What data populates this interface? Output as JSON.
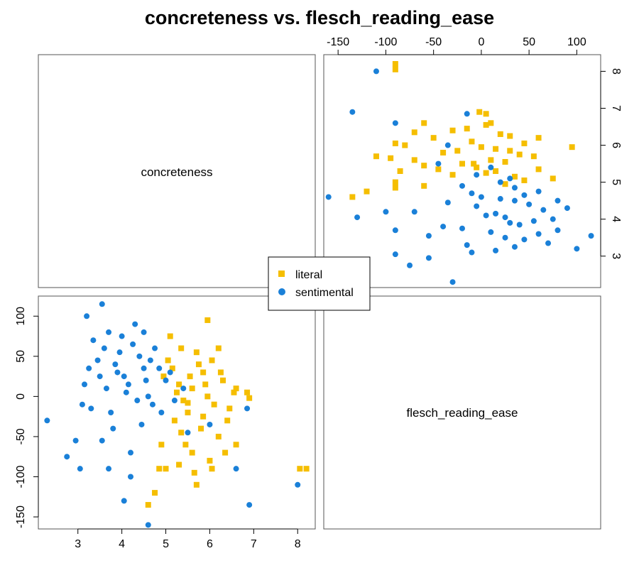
{
  "chart_data": {
    "type": "scatter",
    "layout": "scatterplot-matrix",
    "title": "concreteness vs. flesch_reading_ease",
    "variables": [
      "concreteness",
      "flesch_reading_ease"
    ],
    "axes": {
      "concreteness": {
        "ticks": [
          3,
          4,
          5,
          6,
          7,
          8
        ],
        "range": [
          2.1,
          8.4
        ]
      },
      "flesch_reading_ease": {
        "ticks": [
          -150,
          -100,
          -50,
          0,
          50,
          100
        ],
        "range": [
          -165,
          125
        ]
      }
    },
    "legend": {
      "position": "center",
      "entries": [
        "literal",
        "sentimental"
      ]
    },
    "series": [
      {
        "name": "literal",
        "color": "#F5BE00",
        "marker": "square",
        "points": [
          [
            8.2,
            -90
          ],
          [
            8.05,
            -90
          ],
          [
            6.6,
            -60
          ],
          [
            6.85,
            5
          ],
          [
            6.2,
            -50
          ],
          [
            6.05,
            -90
          ],
          [
            5.7,
            -110
          ],
          [
            5.3,
            -85
          ],
          [
            4.6,
            -135
          ],
          [
            4.85,
            -90
          ],
          [
            5.95,
            95
          ],
          [
            5.1,
            75
          ],
          [
            5.35,
            60
          ],
          [
            5.85,
            30
          ],
          [
            5.6,
            10
          ],
          [
            5.4,
            -5
          ],
          [
            5.2,
            -30
          ],
          [
            4.9,
            -60
          ],
          [
            5.5,
            -20
          ],
          [
            6.3,
            20
          ],
          [
            6.45,
            -15
          ],
          [
            5.75,
            40
          ],
          [
            5.55,
            25
          ],
          [
            5.8,
            -40
          ],
          [
            5.05,
            45
          ],
          [
            6.1,
            -10
          ],
          [
            5.9,
            15
          ],
          [
            5.25,
            5
          ],
          [
            4.95,
            25
          ],
          [
            6.6,
            10
          ],
          [
            6.55,
            5
          ],
          [
            6.9,
            -2
          ],
          [
            6.2,
            60
          ],
          [
            5.45,
            -60
          ],
          [
            5.0,
            -90
          ],
          [
            4.75,
            -120
          ],
          [
            6.0,
            -80
          ],
          [
            5.65,
            -95
          ],
          [
            6.35,
            -70
          ],
          [
            5.6,
            -70
          ],
          [
            5.15,
            35
          ],
          [
            5.7,
            55
          ],
          [
            6.05,
            45
          ],
          [
            5.3,
            15
          ],
          [
            5.5,
            -8
          ],
          [
            5.85,
            -25
          ],
          [
            6.25,
            30
          ],
          [
            6.4,
            -30
          ],
          [
            5.95,
            0
          ],
          [
            5.35,
            -45
          ]
        ]
      },
      {
        "name": "sentimental",
        "color": "#1A80D8",
        "marker": "circle",
        "points": [
          [
            8.0,
            -110
          ],
          [
            6.9,
            -135
          ],
          [
            2.3,
            -30
          ],
          [
            2.75,
            -75
          ],
          [
            2.95,
            -55
          ],
          [
            3.05,
            -90
          ],
          [
            4.05,
            -130
          ],
          [
            4.6,
            -160
          ],
          [
            3.55,
            115
          ],
          [
            3.2,
            100
          ],
          [
            6.85,
            -15
          ],
          [
            3.7,
            -90
          ],
          [
            4.2,
            -100
          ],
          [
            6.6,
            -90
          ],
          [
            5.5,
            -45
          ],
          [
            6.0,
            -35
          ],
          [
            4.3,
            90
          ],
          [
            4.5,
            80
          ],
          [
            3.85,
            40
          ],
          [
            4.15,
            15
          ],
          [
            3.6,
            60
          ],
          [
            4.4,
            50
          ],
          [
            3.9,
            30
          ],
          [
            4.1,
            5
          ],
          [
            3.5,
            25
          ],
          [
            4.7,
            -10
          ],
          [
            4.25,
            65
          ],
          [
            3.75,
            -20
          ],
          [
            4.55,
            20
          ],
          [
            3.95,
            55
          ],
          [
            3.3,
            -15
          ],
          [
            4.85,
            35
          ],
          [
            3.65,
            10
          ],
          [
            4.45,
            -35
          ],
          [
            4.0,
            75
          ],
          [
            3.45,
            45
          ],
          [
            4.35,
            -5
          ],
          [
            3.8,
            -40
          ],
          [
            4.6,
            0
          ],
          [
            3.25,
            35
          ],
          [
            5.1,
            30
          ],
          [
            4.9,
            -20
          ],
          [
            3.1,
            -10
          ],
          [
            5.2,
            -5
          ],
          [
            3.35,
            70
          ],
          [
            4.75,
            60
          ],
          [
            4.05,
            25
          ],
          [
            3.55,
            -55
          ],
          [
            4.65,
            45
          ],
          [
            3.15,
            15
          ],
          [
            5.4,
            10
          ],
          [
            4.2,
            -70
          ],
          [
            3.7,
            80
          ],
          [
            4.5,
            35
          ],
          [
            5.0,
            20
          ]
        ]
      }
    ]
  }
}
